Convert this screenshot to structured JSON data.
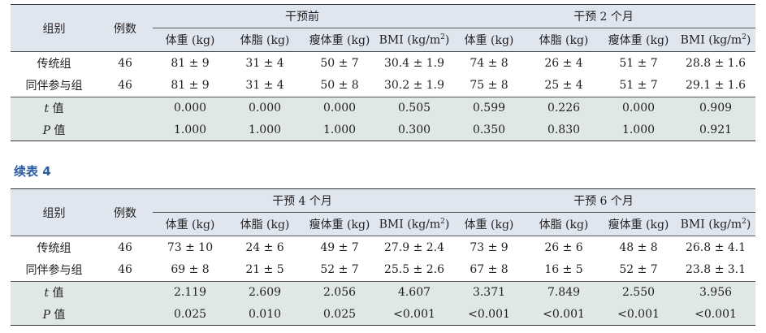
{
  "headers": {
    "group": "组别",
    "count": "例数",
    "subcols": [
      "体重 (kg)",
      "体脂 (kg)",
      "瘦体重 (kg)",
      "BMI (kg/m",
      "体重 (kg)",
      "体脂 (kg)",
      "瘦体重 (kg)",
      "BMI (kg/m"
    ],
    "bmi_sup": "2",
    "bmi_close": ")"
  },
  "table1": {
    "period_left": "干预前",
    "period_right": "干预 2 个月",
    "rows": [
      {
        "label": "传统组",
        "n": "46",
        "vals": [
          "81 ± 9",
          "31 ± 4",
          "50 ± 7",
          "30.4 ± 1.9",
          "74 ± 8",
          "26 ± 4",
          "51 ± 7",
          "28.8 ± 1.6"
        ]
      },
      {
        "label": "同伴参与组",
        "n": "46",
        "vals": [
          "81 ± 9",
          "31 ± 4",
          "50 ± 8",
          "30.2 ± 1.9",
          "75 ± 8",
          "25 ± 4",
          "51 ± 7",
          "29.1 ± 1.6"
        ]
      }
    ],
    "stats": [
      {
        "sym": "t",
        "suffix": " 值",
        "vals": [
          "0.000",
          "0.000",
          "0.000",
          "0.505",
          "0.599",
          "0.226",
          "0.000",
          "0.909"
        ]
      },
      {
        "sym": "P",
        "suffix": " 值",
        "vals": [
          "1.000",
          "1.000",
          "1.000",
          "0.300",
          "0.350",
          "0.830",
          "1.000",
          "0.921"
        ]
      }
    ]
  },
  "continued_label": "续表 4",
  "table2": {
    "period_left": "干预 4 个月",
    "period_right": "干预 6 个月",
    "rows": [
      {
        "label": "传统组",
        "n": "46",
        "vals": [
          "73 ± 10",
          "24 ± 6",
          "49 ± 7",
          "27.9 ± 2.4",
          "73 ± 9",
          "26 ± 6",
          "48 ± 8",
          "26.8 ± 4.1"
        ]
      },
      {
        "label": "同伴参与组",
        "n": "46",
        "vals": [
          "69 ± 8",
          "21 ± 5",
          "52 ± 7",
          "25.5 ± 2.6",
          "67 ± 8",
          "16 ± 5",
          "52 ± 7",
          "23.8 ± 3.1"
        ]
      }
    ],
    "stats": [
      {
        "sym": "t",
        "suffix": " 值",
        "vals": [
          "2.119",
          "2.609",
          "2.056",
          "4.607",
          "3.371",
          "7.849",
          "2.550",
          "3.956"
        ]
      },
      {
        "sym": "P",
        "suffix": " 值",
        "vals": [
          "0.025",
          "0.010",
          "0.025",
          "<0.001",
          "<0.001",
          "<0.001",
          "<0.001",
          "<0.001"
        ]
      }
    ]
  }
}
